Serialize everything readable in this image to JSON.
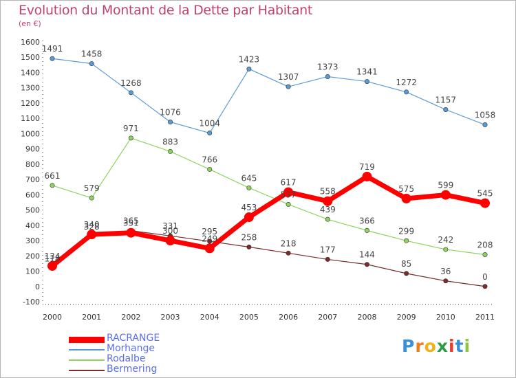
{
  "title": "Evolution du Montant de la Dette par Habitant",
  "subtitle": "(en €)",
  "brand": {
    "letters": [
      "P",
      "r",
      "o",
      "x",
      "i",
      "t",
      "i"
    ],
    "colors": [
      "#3a8fd6",
      "#f07c1a",
      "#f0b21a",
      "#2c9b44",
      "#e63c2a",
      "#3a8fd6",
      "#8cc63f"
    ]
  },
  "chart_data": {
    "type": "line",
    "title": "Evolution du Montant de la Dette par Habitant",
    "ylabel": "(en €)",
    "categories": [
      "2000",
      "2001",
      "2002",
      "2003",
      "2004",
      "2005",
      "2006",
      "2007",
      "2008",
      "2009",
      "2010",
      "2011"
    ],
    "ylim": [
      -100,
      1600
    ],
    "yticks": [
      -100,
      0,
      100,
      200,
      300,
      400,
      500,
      600,
      700,
      800,
      900,
      1000,
      1100,
      1200,
      1300,
      1400,
      1500,
      1600
    ],
    "grid": false,
    "legend_position": "bottom-left",
    "series": [
      {
        "name": "RACRANGE",
        "color": "#ff0000",
        "values": [
          134,
          340,
          351,
          300,
          249,
          453,
          617,
          558,
          719,
          575,
          599,
          545
        ]
      },
      {
        "name": "Morhange",
        "color": "#5b9bd5",
        "values": [
          1491,
          1458,
          1268,
          1076,
          1004,
          1423,
          1307,
          1373,
          1341,
          1272,
          1157,
          1058
        ]
      },
      {
        "name": "Rodalbe",
        "color": "#8dd35f",
        "values": [
          661,
          579,
          971,
          883,
          766,
          645,
          537,
          439,
          366,
          299,
          242,
          208
        ]
      },
      {
        "name": "Bermering",
        "color": "#7b2b2b",
        "values": [
          118,
          328,
          365,
          331,
          295,
          258,
          218,
          177,
          144,
          85,
          36,
          0
        ]
      }
    ]
  }
}
